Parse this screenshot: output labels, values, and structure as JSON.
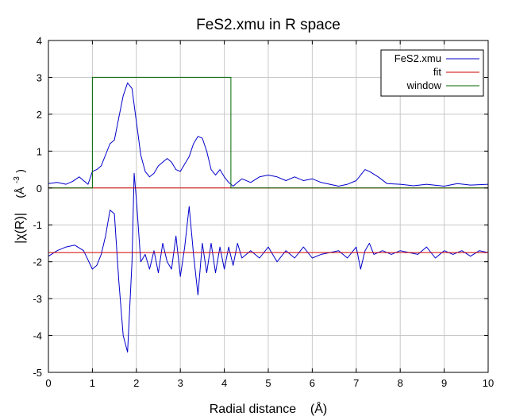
{
  "chart_data": {
    "type": "line",
    "title": "FeS2.xmu in R space",
    "xlabel": "Radial distance    (Å)",
    "ylabel_main": "|χ(R)|",
    "ylabel_unit_base": "(Å",
    "ylabel_unit_exp": "-3",
    "ylabel_unit_close": ")",
    "xlim": [
      0,
      10
    ],
    "ylim": [
      -5,
      4
    ],
    "x_ticks": [
      0,
      1,
      2,
      3,
      4,
      5,
      6,
      7,
      8,
      9,
      10
    ],
    "y_ticks": [
      -5,
      -4,
      -3,
      -2,
      -1,
      0,
      1,
      2,
      3,
      4
    ],
    "x_tick_labels": [
      "0",
      "1",
      "2",
      "3",
      "4",
      "5",
      "6",
      "7",
      "8",
      "9",
      "10"
    ],
    "y_tick_labels": [
      "-5",
      "-4",
      "-3",
      "-2",
      "-1",
      "0",
      "1",
      "2",
      "3",
      "4"
    ],
    "grid": true,
    "legend_position": "top-right",
    "legend": [
      "FeS2.xmu",
      "fit",
      "window"
    ],
    "colors": {
      "magnitude": "#0000cc",
      "fit": "#cc0000",
      "window": "#006600",
      "grid": "#c8c8c8"
    },
    "series": [
      {
        "name": "FeS2.xmu",
        "part": "magnitude",
        "x": [
          0,
          0.2,
          0.4,
          0.55,
          0.7,
          0.8,
          0.9,
          1.0,
          1.1,
          1.2,
          1.3,
          1.4,
          1.5,
          1.6,
          1.7,
          1.8,
          1.9,
          2.0,
          2.1,
          2.2,
          2.3,
          2.4,
          2.5,
          2.6,
          2.7,
          2.8,
          2.9,
          3.0,
          3.1,
          3.2,
          3.3,
          3.4,
          3.5,
          3.6,
          3.7,
          3.8,
          3.9,
          4.0,
          4.1,
          4.2,
          4.3,
          4.4,
          4.6,
          4.8,
          5.0,
          5.2,
          5.4,
          5.6,
          5.8,
          6.0,
          6.2,
          6.4,
          6.6,
          6.8,
          7.0,
          7.2,
          7.3,
          7.5,
          7.7,
          8.0,
          8.3,
          8.6,
          9.0,
          9.3,
          9.6,
          10.0
        ],
        "y": [
          0.12,
          0.15,
          0.1,
          0.18,
          0.3,
          0.2,
          0.1,
          0.45,
          0.5,
          0.6,
          0.9,
          1.2,
          1.3,
          1.9,
          2.5,
          2.85,
          2.7,
          1.8,
          0.9,
          0.45,
          0.3,
          0.4,
          0.6,
          0.7,
          0.8,
          0.7,
          0.5,
          0.45,
          0.65,
          0.85,
          1.2,
          1.4,
          1.35,
          1.0,
          0.5,
          0.35,
          0.5,
          0.3,
          0.15,
          0.05,
          0.15,
          0.25,
          0.15,
          0.3,
          0.35,
          0.3,
          0.2,
          0.3,
          0.2,
          0.25,
          0.15,
          0.1,
          0.05,
          0.1,
          0.2,
          0.5,
          0.45,
          0.3,
          0.12,
          0.1,
          0.06,
          0.1,
          0.05,
          0.12,
          0.08,
          0.1
        ]
      },
      {
        "name": "FeS2.xmu",
        "part": "real",
        "x": [
          0,
          0.2,
          0.4,
          0.6,
          0.8,
          1.0,
          1.1,
          1.2,
          1.3,
          1.4,
          1.5,
          1.6,
          1.7,
          1.8,
          1.9,
          1.95,
          2.0,
          2.1,
          2.2,
          2.3,
          2.4,
          2.5,
          2.6,
          2.7,
          2.8,
          2.9,
          3.0,
          3.1,
          3.2,
          3.3,
          3.4,
          3.5,
          3.6,
          3.7,
          3.8,
          3.9,
          4.0,
          4.1,
          4.2,
          4.3,
          4.4,
          4.6,
          4.8,
          5.0,
          5.2,
          5.4,
          5.6,
          5.8,
          6.0,
          6.2,
          6.4,
          6.6,
          6.8,
          7.0,
          7.1,
          7.2,
          7.3,
          7.4,
          7.6,
          7.8,
          8.0,
          8.2,
          8.4,
          8.6,
          8.8,
          9.0,
          9.2,
          9.4,
          9.6,
          9.8,
          10.0
        ],
        "y": [
          -1.85,
          -1.7,
          -1.6,
          -1.55,
          -1.7,
          -2.2,
          -2.1,
          -1.8,
          -1.3,
          -0.6,
          -0.7,
          -2.5,
          -4.0,
          -4.45,
          -2.0,
          0.4,
          -0.3,
          -2.0,
          -1.8,
          -2.2,
          -1.7,
          -2.3,
          -1.5,
          -2.0,
          -2.2,
          -1.3,
          -2.4,
          -1.6,
          -0.5,
          -1.8,
          -2.9,
          -1.5,
          -2.3,
          -1.5,
          -2.3,
          -1.6,
          -2.2,
          -1.6,
          -2.1,
          -1.5,
          -1.9,
          -1.7,
          -1.9,
          -1.6,
          -2.0,
          -1.7,
          -1.9,
          -1.6,
          -1.9,
          -1.8,
          -1.75,
          -1.7,
          -1.9,
          -1.6,
          -2.2,
          -1.7,
          -1.5,
          -1.8,
          -1.7,
          -1.8,
          -1.7,
          -1.75,
          -1.8,
          -1.6,
          -1.9,
          -1.7,
          -1.8,
          -1.7,
          -1.85,
          -1.7,
          -1.75
        ]
      },
      {
        "name": "fit",
        "part": "magnitude",
        "x": [
          0,
          10
        ],
        "y": [
          0,
          0
        ]
      },
      {
        "name": "fit",
        "part": "real",
        "x": [
          0,
          10
        ],
        "y": [
          -1.75,
          -1.75
        ]
      },
      {
        "name": "window",
        "x": [
          0,
          1.0,
          1.0,
          4.15,
          4.15,
          10
        ],
        "y": [
          0,
          0,
          3.0,
          3.0,
          0,
          0
        ]
      }
    ]
  }
}
